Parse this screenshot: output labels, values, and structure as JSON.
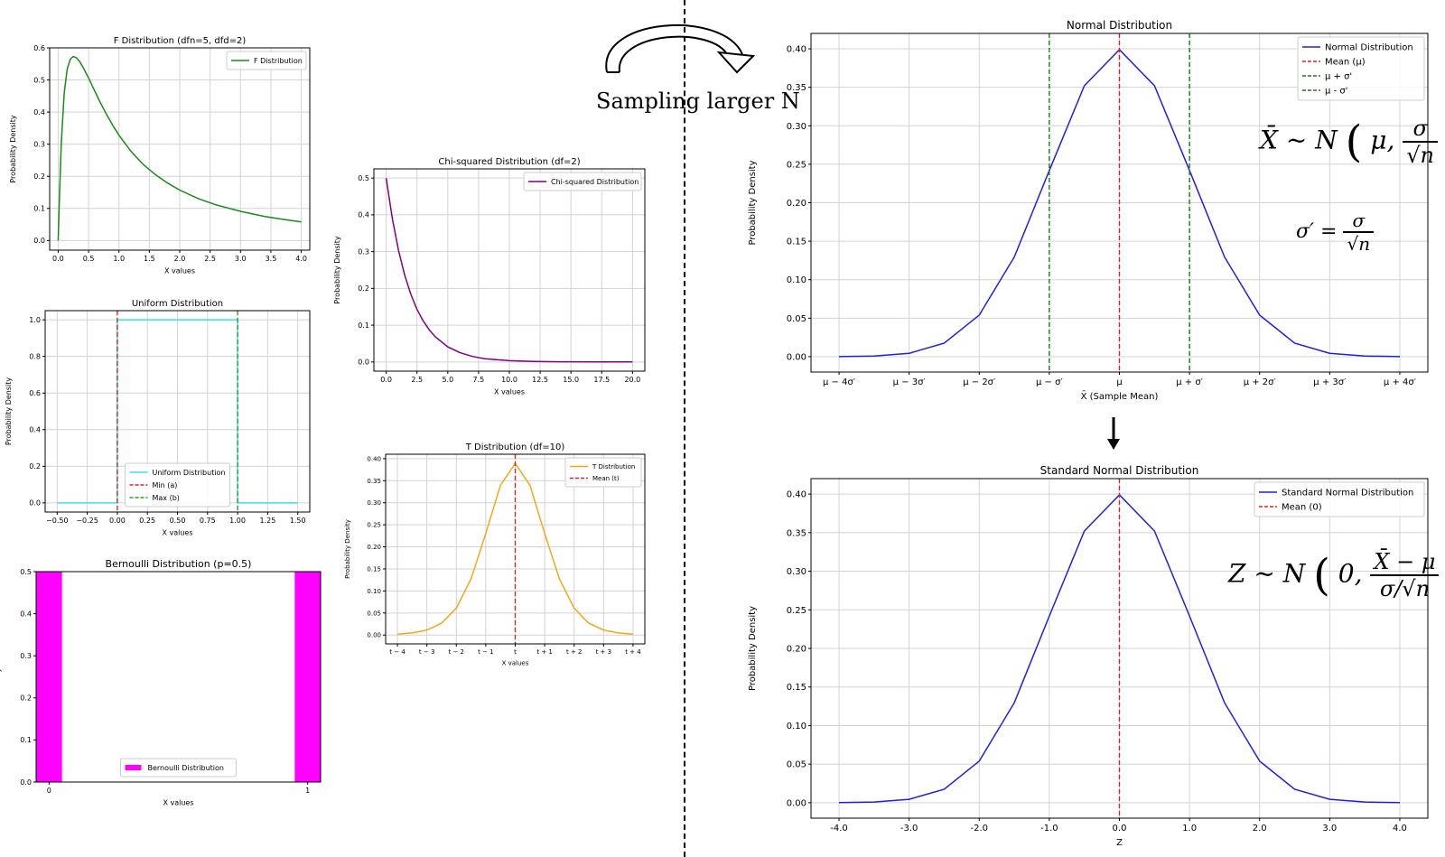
{
  "annotations": {
    "sampling_text": "Sampling larger N",
    "formula_sample_mean": {
      "lhs": "X̄ ~ N",
      "open": "(",
      "args": "μ,",
      "num": "σ",
      "den": "√n",
      "close": ")"
    },
    "formula_sigma_prime": {
      "lhs": "σ′ =",
      "num": "σ",
      "den": "√n"
    },
    "formula_z": {
      "lhs": "Z ~ N",
      "open": "(",
      "args": "0,",
      "num": "X̄ − μ",
      "den": "σ/√n",
      "close": ")"
    }
  },
  "chart_data": [
    {
      "id": "f",
      "type": "line",
      "title": "F Distribution (dfn=5, dfd=2)",
      "xlabel": "X values",
      "ylabel": "Probability Density",
      "xlim": [
        -0.14,
        4.14
      ],
      "ylim": [
        -0.03,
        0.6
      ],
      "xticks": [
        0,
        0.5,
        1.0,
        1.5,
        2.0,
        2.5,
        3.0,
        3.5,
        4.0
      ],
      "xticklabels": [
        "0.0",
        "0.5",
        "1.0",
        "1.5",
        "2.0",
        "2.5",
        "3.0",
        "3.5",
        "4.0"
      ],
      "yticks": [
        0,
        0.1,
        0.2,
        0.3,
        0.4,
        0.5,
        0.6
      ],
      "yticklabels": [
        "0.0",
        "0.1",
        "0.2",
        "0.3",
        "0.4",
        "0.5",
        "0.6"
      ],
      "grid": true,
      "legend_position": "top-right",
      "series": [
        {
          "name": "F Distribution",
          "color": "#1a8a1a",
          "style": "solid",
          "x": [
            0,
            0.02,
            0.05,
            0.1,
            0.15,
            0.2,
            0.25,
            0.3,
            0.35,
            0.4,
            0.5,
            0.6,
            0.7,
            0.8,
            0.9,
            1.0,
            1.2,
            1.4,
            1.6,
            1.8,
            2.0,
            2.3,
            2.6,
            3.0,
            3.4,
            3.7,
            4.0
          ],
          "y": [
            0,
            0.13,
            0.3,
            0.46,
            0.535,
            0.565,
            0.573,
            0.569,
            0.558,
            0.543,
            0.506,
            0.466,
            0.427,
            0.391,
            0.358,
            0.328,
            0.277,
            0.237,
            0.205,
            0.179,
            0.157,
            0.131,
            0.111,
            0.091,
            0.075,
            0.066,
            0.058
          ]
        }
      ]
    },
    {
      "id": "uniform",
      "type": "line",
      "title": "Uniform Distribution",
      "xlabel": "X values",
      "ylabel": "Probability Density",
      "xlim": [
        -0.6,
        1.6
      ],
      "ylim": [
        -0.05,
        1.05
      ],
      "xticks": [
        -0.5,
        -0.25,
        0,
        0.25,
        0.5,
        0.75,
        1.0,
        1.25,
        1.5
      ],
      "xticklabels": [
        "−0.50",
        "−0.25",
        "0.00",
        "0.25",
        "0.50",
        "0.75",
        "1.00",
        "1.25",
        "1.50"
      ],
      "yticks": [
        0,
        0.2,
        0.4,
        0.6,
        0.8,
        1.0
      ],
      "yticklabels": [
        "0.0",
        "0.2",
        "0.4",
        "0.6",
        "0.8",
        "1.0"
      ],
      "grid": true,
      "legend_position": "bottom-center",
      "series": [
        {
          "name": "Uniform Distribution",
          "color": "#3ee0e0",
          "style": "solid",
          "x": [
            -0.5,
            0,
            0,
            1,
            1,
            1.5
          ],
          "y": [
            0,
            0,
            1,
            1,
            0,
            0
          ]
        },
        {
          "name": "Min (a)",
          "color": "#d62728",
          "style": "dashed",
          "vline": 0
        },
        {
          "name": "Max (b)",
          "color": "#2ca02c",
          "style": "dashed",
          "vline": 1
        }
      ]
    },
    {
      "id": "bernoulli",
      "type": "bar",
      "title": "Bernoulli Distribution (p=0.5)",
      "xlabel": "X values",
      "ylabel": "Probability Mass",
      "xlim": [
        -0.05,
        1.05
      ],
      "ylim": [
        0,
        0.5
      ],
      "xticks": [
        0,
        1
      ],
      "xticklabels": [
        "0",
        "1"
      ],
      "yticks": [
        0,
        0.1,
        0.2,
        0.3,
        0.4,
        0.5
      ],
      "yticklabels": [
        "0.0",
        "0.1",
        "0.2",
        "0.3",
        "0.4",
        "0.5"
      ],
      "grid": false,
      "legend_position": "bottom-center",
      "bar_width": 0.1,
      "series": [
        {
          "name": "Bernoulli Distribution",
          "color": "#ff00ff",
          "categories": [
            0,
            1
          ],
          "values": [
            0.5,
            0.5
          ]
        }
      ]
    },
    {
      "id": "chi",
      "type": "line",
      "title": "Chi-squared Distribution (df=2)",
      "xlabel": "X values",
      "ylabel": "Probability Density",
      "xlim": [
        -1,
        21
      ],
      "ylim": [
        -0.025,
        0.525
      ],
      "xticks": [
        0,
        2.5,
        5,
        7.5,
        10,
        12.5,
        15,
        17.5,
        20
      ],
      "xticklabels": [
        "0.0",
        "2.5",
        "5.0",
        "7.5",
        "10.0",
        "12.5",
        "15.0",
        "17.5",
        "20.0"
      ],
      "yticks": [
        0,
        0.1,
        0.2,
        0.3,
        0.4,
        0.5
      ],
      "yticklabels": [
        "0.0",
        "0.1",
        "0.2",
        "0.3",
        "0.4",
        "0.5"
      ],
      "grid": true,
      "legend_position": "top-right",
      "series": [
        {
          "name": "Chi-squared Distribution",
          "color": "#800080",
          "style": "solid",
          "x": [
            0,
            0.5,
            1,
            1.5,
            2,
            2.5,
            3,
            3.5,
            4,
            5,
            6,
            7,
            8,
            10,
            12,
            14,
            17,
            20
          ],
          "y": [
            0.5,
            0.389,
            0.303,
            0.236,
            0.184,
            0.143,
            0.112,
            0.087,
            0.068,
            0.041,
            0.025,
            0.015,
            0.009,
            0.0034,
            0.0012,
            0.0005,
            0.0001,
            2e-05
          ]
        }
      ]
    },
    {
      "id": "t",
      "type": "line",
      "title": "T Distribution (df=10)",
      "xlabel": "X values",
      "ylabel": "Probability Density",
      "xlim": [
        -4.4,
        4.4
      ],
      "ylim": [
        -0.02,
        0.41
      ],
      "xticks": [
        -4,
        -3,
        -2,
        -1,
        0,
        1,
        2,
        3,
        4
      ],
      "xticklabels": [
        "t − 4",
        "t − 3",
        "t − 2",
        "t − 1",
        "t",
        "t + 1",
        "t + 2",
        "t + 3",
        "t + 4"
      ],
      "yticks": [
        0,
        0.05,
        0.1,
        0.15,
        0.2,
        0.25,
        0.3,
        0.35,
        0.4
      ],
      "yticklabels": [
        "0.00",
        "0.05",
        "0.10",
        "0.15",
        "0.20",
        "0.25",
        "0.30",
        "0.35",
        "0.40"
      ],
      "grid": true,
      "legend_position": "top-right",
      "series": [
        {
          "name": "T Distribution",
          "color": "#f0a818",
          "style": "solid",
          "x": [
            -4,
            -3.5,
            -3,
            -2.5,
            -2,
            -1.5,
            -1,
            -0.5,
            0,
            0.5,
            1,
            1.5,
            2,
            2.5,
            3,
            3.5,
            4
          ],
          "y": [
            0.002,
            0.0047,
            0.0114,
            0.0269,
            0.0611,
            0.1274,
            0.2304,
            0.3397,
            0.3891,
            0.3397,
            0.2304,
            0.1274,
            0.0611,
            0.0269,
            0.0114,
            0.0047,
            0.002
          ]
        },
        {
          "name": "Mean (t)",
          "color": "#d62728",
          "style": "dashed",
          "vline": 0
        }
      ]
    },
    {
      "id": "normal",
      "type": "line",
      "title": "Normal Distribution",
      "xlabel": "X̄ (Sample Mean)",
      "ylabel": "Probability Density",
      "xlim": [
        -4.4,
        4.4
      ],
      "ylim": [
        -0.02,
        0.42
      ],
      "xticks": [
        -4,
        -3,
        -2,
        -1,
        0,
        1,
        2,
        3,
        4
      ],
      "xticklabels": [
        "μ − 4σ′",
        "μ − 3σ′",
        "μ − 2σ′",
        "μ − σ′",
        "μ",
        "μ + σ′",
        "μ + 2σ′",
        "μ + 3σ′",
        "μ + 4σ′"
      ],
      "yticks": [
        0,
        0.05,
        0.1,
        0.15,
        0.2,
        0.25,
        0.3,
        0.35,
        0.4
      ],
      "yticklabels": [
        "0.00",
        "0.05",
        "0.10",
        "0.15",
        "0.20",
        "0.25",
        "0.30",
        "0.35",
        "0.40"
      ],
      "grid": true,
      "legend_position": "top-right",
      "series": [
        {
          "name": "Normal Distribution",
          "color": "#1f1fdf",
          "style": "solid",
          "x": [
            -4,
            -3.5,
            -3,
            -2.5,
            -2,
            -1.5,
            -1,
            -0.5,
            0,
            0.5,
            1,
            1.5,
            2,
            2.5,
            3,
            3.5,
            4
          ],
          "y": [
            0.0001,
            0.0009,
            0.0044,
            0.0175,
            0.054,
            0.1295,
            0.242,
            0.3521,
            0.3989,
            0.3521,
            0.242,
            0.1295,
            0.054,
            0.0175,
            0.0044,
            0.0009,
            0.0001
          ]
        },
        {
          "name": "Mean (μ)",
          "color": "#d62728",
          "style": "dashed",
          "vline": 0
        },
        {
          "name": "μ + σ'",
          "color": "#1a7a1a",
          "style": "dashed",
          "vline": 1
        },
        {
          "name": "μ - σ'",
          "color": "#1a7a1a",
          "style": "dashed",
          "vline": -1
        }
      ]
    },
    {
      "id": "stdnormal",
      "type": "line",
      "title": "Standard Normal Distribution",
      "xlabel": "Z",
      "ylabel": "Probability Density",
      "xlim": [
        -4.4,
        4.4
      ],
      "ylim": [
        -0.02,
        0.42
      ],
      "xticks": [
        -4,
        -3,
        -2,
        -1,
        0,
        1,
        2,
        3,
        4
      ],
      "xticklabels": [
        "-4.0",
        "-3.0",
        "-2.0",
        "-1.0",
        "0.0",
        "1.0",
        "2.0",
        "3.0",
        "4.0"
      ],
      "yticks": [
        0,
        0.05,
        0.1,
        0.15,
        0.2,
        0.25,
        0.3,
        0.35,
        0.4
      ],
      "yticklabels": [
        "0.00",
        "0.05",
        "0.10",
        "0.15",
        "0.20",
        "0.25",
        "0.30",
        "0.35",
        "0.40"
      ],
      "grid": true,
      "legend_position": "top-right",
      "series": [
        {
          "name": "Standard Normal Distribution",
          "color": "#1f1fdf",
          "style": "solid",
          "x": [
            -4,
            -3.5,
            -3,
            -2.5,
            -2,
            -1.5,
            -1,
            -0.5,
            0,
            0.5,
            1,
            1.5,
            2,
            2.5,
            3,
            3.5,
            4
          ],
          "y": [
            0.0001,
            0.0009,
            0.0044,
            0.0175,
            0.054,
            0.1295,
            0.242,
            0.3521,
            0.3989,
            0.3521,
            0.242,
            0.1295,
            0.054,
            0.0175,
            0.0044,
            0.0009,
            0.0001
          ]
        },
        {
          "name": "Mean (0)",
          "color": "#d62728",
          "style": "dashed",
          "vline": 0
        }
      ]
    }
  ]
}
